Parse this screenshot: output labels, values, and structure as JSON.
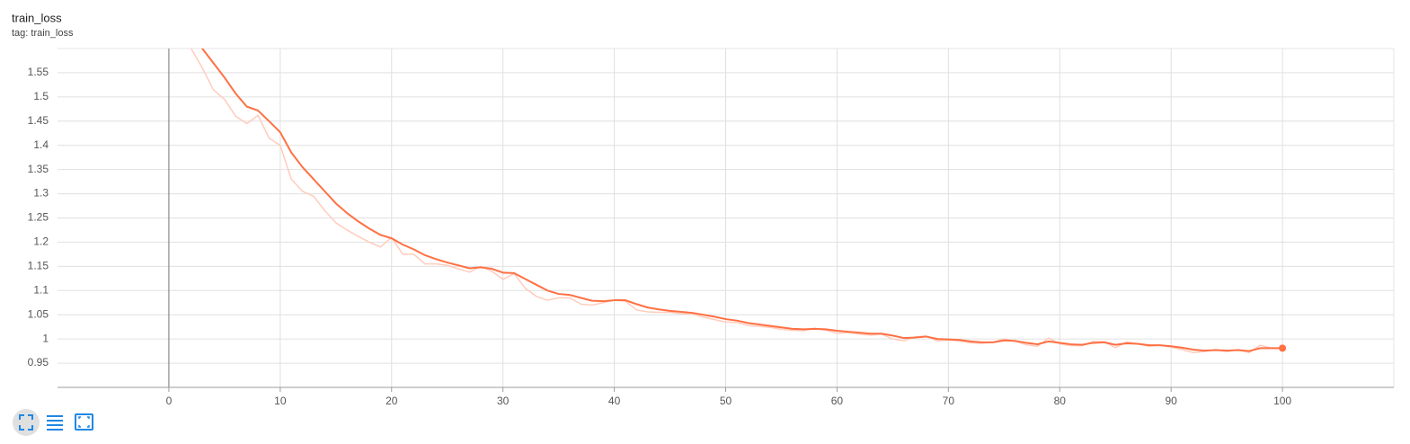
{
  "chart_data": {
    "type": "line",
    "title": "train_loss",
    "subtitle": "tag: train_loss",
    "x": [
      2,
      3,
      4,
      5,
      6,
      7,
      8,
      9,
      10,
      11,
      12,
      13,
      14,
      15,
      16,
      17,
      18,
      19,
      20,
      21,
      22,
      23,
      24,
      25,
      26,
      27,
      28,
      29,
      30,
      31,
      32,
      33,
      34,
      35,
      36,
      37,
      38,
      39,
      40,
      41,
      42,
      43,
      44,
      45,
      46,
      47,
      48,
      49,
      50,
      51,
      52,
      53,
      54,
      55,
      56,
      57,
      58,
      59,
      60,
      61,
      62,
      63,
      64,
      65,
      66,
      67,
      68,
      69,
      70,
      71,
      72,
      73,
      74,
      75,
      76,
      77,
      78,
      79,
      80,
      81,
      82,
      83,
      84,
      85,
      86,
      87,
      88,
      89,
      90,
      91,
      92,
      93,
      94,
      95,
      96,
      97,
      98,
      99,
      100
    ],
    "series": [
      {
        "color": "#ff7043",
        "values": [
          1.63,
          1.6,
          1.57,
          1.54,
          1.507,
          1.48,
          1.472,
          1.45,
          1.427,
          1.385,
          1.355,
          1.33,
          1.305,
          1.28,
          1.26,
          1.243,
          1.228,
          1.215,
          1.208,
          1.195,
          1.185,
          1.173,
          1.165,
          1.158,
          1.152,
          1.146,
          1.148,
          1.145,
          1.137,
          1.136,
          1.124,
          1.112,
          1.1,
          1.093,
          1.091,
          1.085,
          1.079,
          1.078,
          1.08,
          1.08,
          1.072,
          1.065,
          1.061,
          1.058,
          1.056,
          1.054,
          1.05,
          1.046,
          1.041,
          1.038,
          1.033,
          1.03,
          1.027,
          1.024,
          1.021,
          1.02,
          1.021,
          1.02,
          1.017,
          1.015,
          1.013,
          1.011,
          1.011,
          1.007,
          1.002,
          1.003,
          1.005,
          1.0,
          0.999,
          0.998,
          0.995,
          0.993,
          0.993,
          0.997,
          0.996,
          0.992,
          0.989,
          0.995,
          0.992,
          0.989,
          0.988,
          0.992,
          0.993,
          0.988,
          0.991,
          0.99,
          0.987,
          0.987,
          0.985,
          0.982,
          0.978,
          0.976,
          0.977,
          0.976,
          0.977,
          0.975,
          0.981,
          0.981,
          0.981
        ]
      },
      {
        "color": "#ffccbc",
        "values": [
          1.6,
          1.56,
          1.515,
          1.495,
          1.46,
          1.445,
          1.462,
          1.415,
          1.4,
          1.33,
          1.305,
          1.295,
          1.265,
          1.24,
          1.225,
          1.212,
          1.2,
          1.19,
          1.21,
          1.175,
          1.175,
          1.155,
          1.155,
          1.152,
          1.145,
          1.138,
          1.15,
          1.14,
          1.123,
          1.135,
          1.105,
          1.088,
          1.08,
          1.085,
          1.085,
          1.072,
          1.07,
          1.075,
          1.08,
          1.078,
          1.06,
          1.056,
          1.055,
          1.055,
          1.052,
          1.052,
          1.045,
          1.04,
          1.035,
          1.034,
          1.028,
          1.026,
          1.024,
          1.02,
          1.018,
          1.017,
          1.022,
          1.018,
          1.012,
          1.013,
          1.01,
          1.008,
          1.01,
          1.0,
          0.996,
          1.004,
          1.006,
          0.996,
          0.998,
          0.996,
          0.992,
          0.991,
          0.993,
          1.0,
          0.995,
          0.988,
          0.985,
          1.002,
          0.99,
          0.986,
          0.986,
          0.995,
          0.994,
          0.982,
          0.994,
          0.99,
          0.985,
          0.987,
          0.983,
          0.978,
          0.972,
          0.974,
          0.978,
          0.974,
          0.978,
          0.972,
          0.987,
          0.981,
          0.98
        ]
      }
    ],
    "xlim": [
      -10,
      110
    ],
    "ylim": [
      0.9,
      1.6
    ],
    "xticks": [
      0,
      10,
      20,
      30,
      40,
      50,
      60,
      70,
      80,
      90,
      100
    ],
    "yticks": [
      0.95,
      1,
      1.05,
      1.1,
      1.15,
      1.2,
      1.25,
      1.3,
      1.35,
      1.4,
      1.45,
      1.5,
      1.55
    ],
    "grid": true
  }
}
